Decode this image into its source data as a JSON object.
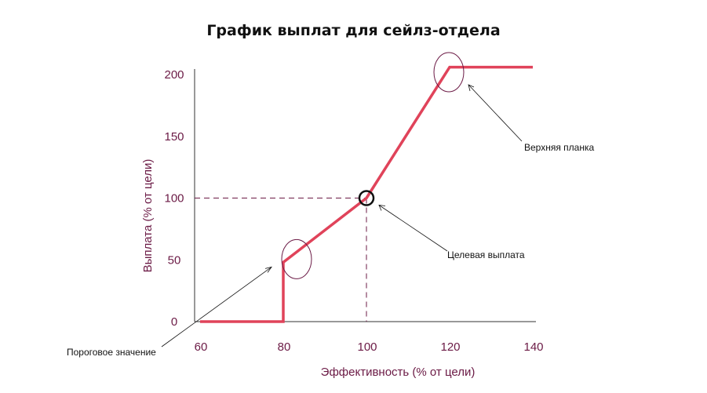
{
  "chart_data": {
    "type": "line",
    "title": "График выплат для сейлз-отдела",
    "xlabel": "Эффективность (% от цели)",
    "ylabel": "Выплата (% от цели)",
    "xlim": [
      60,
      140
    ],
    "ylim": [
      0,
      200
    ],
    "xticks": [
      "60",
      "80",
      "100",
      "120",
      "140"
    ],
    "yticks": [
      "0",
      "50",
      "100",
      "150",
      "200"
    ],
    "grid": false,
    "series": [
      {
        "points": [
          {
            "x": 60,
            "y": 0
          },
          {
            "x": 80,
            "y": 0
          },
          {
            "x": 80,
            "y": 48
          },
          {
            "x": 100,
            "y": 100
          },
          {
            "x": 120,
            "y": 206
          },
          {
            "x": 140,
            "y": 206
          }
        ]
      }
    ],
    "annotations": [
      {
        "text": "Пороговое значение",
        "x": 80,
        "y": 48
      },
      {
        "text": "Целевая выплата",
        "x": 100,
        "y": 100
      },
      {
        "text": "Верхняя планка",
        "x": 120,
        "y": 206
      }
    ],
    "colors": {
      "series": "#e0435a",
      "axis_text": "#6b1a45",
      "annotation": "#111111"
    }
  }
}
